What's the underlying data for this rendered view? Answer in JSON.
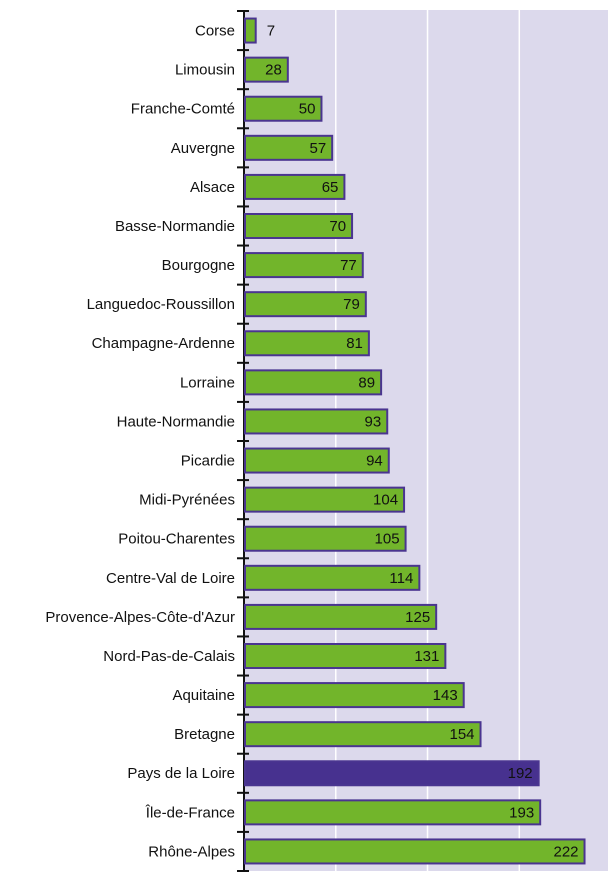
{
  "chart_data": {
    "type": "hbar",
    "categories": [
      "Corse",
      "Limousin",
      "Franche-Comté",
      "Auvergne",
      "Alsace",
      "Basse-Normandie",
      "Bourgogne",
      "Languedoc-Roussillon",
      "Champagne-Ardenne",
      "Lorraine",
      "Haute-Normandie",
      "Picardie",
      "Midi-Pyrénées",
      "Poitou-Charentes",
      "Centre-Val de Loire",
      "Provence-Alpes-Côte-d'Azur",
      "Nord-Pas-de-Calais",
      "Aquitaine",
      "Bretagne",
      "Pays de la Loire",
      "Île-de-France",
      "Rhône-Alpes"
    ],
    "values": [
      7,
      28,
      50,
      57,
      65,
      70,
      77,
      79,
      81,
      89,
      93,
      94,
      104,
      105,
      114,
      125,
      131,
      143,
      154,
      192,
      193,
      222
    ],
    "colors": [
      "#72b52b",
      "#72b52b",
      "#72b52b",
      "#72b52b",
      "#72b52b",
      "#72b52b",
      "#72b52b",
      "#72b52b",
      "#72b52b",
      "#72b52b",
      "#72b52b",
      "#72b52b",
      "#72b52b",
      "#72b52b",
      "#72b52b",
      "#72b52b",
      "#72b52b",
      "#72b52b",
      "#72b52b",
      "#47318f",
      "#72b52b",
      "#72b52b"
    ],
    "xlim": [
      0,
      238
    ],
    "xticks": [
      60,
      120,
      180
    ],
    "grid": true
  }
}
